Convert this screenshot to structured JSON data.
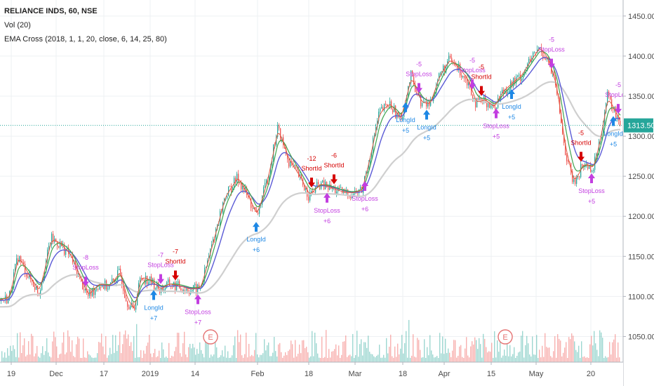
{
  "legend": {
    "symbol": "RELIANCE INDS, 60, NSE",
    "volume": "Vol (20)",
    "strategy": "EMA Cross (2018, 1, 1, 20, close, 6, 14, 25, 80)"
  },
  "price_badge": "1313.50",
  "colors": {
    "up": "#26a69a",
    "down": "#ef5350",
    "ema_fast": "#e0593f",
    "ema_mid": "#3fa34d",
    "ema_slow": "#5b5bd6",
    "ema_long": "#cfcfcf",
    "long_signal": "#1e88e5",
    "short_signal": "#d50000",
    "stop_signal": "#c23ee0",
    "price_line": "#26a69a",
    "earnings": "#e57373"
  },
  "earnings_marker": "E",
  "chart_data": {
    "type": "line",
    "ylim": [
      1018,
      1470
    ],
    "y_ticks": [
      1050,
      1100,
      1150,
      1200,
      1250,
      1300,
      1350,
      1400,
      1450
    ],
    "y_tick_labels": [
      "1050.00",
      "1100.00",
      "1150.00",
      "1200.00",
      "1250.00",
      "1300.00",
      "1350.00",
      "1400.00",
      "1450.00"
    ],
    "x_tick_labels": [
      "19",
      "Dec",
      "17",
      "2019",
      "14",
      "Feb",
      "18",
      "Mar",
      "18",
      "Apr",
      "15",
      "May",
      "20"
    ],
    "last_price": 1313.5,
    "price_path": [
      [
        0,
        1095
      ],
      [
        12,
        1098
      ],
      [
        25,
        1150
      ],
      [
        40,
        1125
      ],
      [
        55,
        1105
      ],
      [
        72,
        1172
      ],
      [
        85,
        1165
      ],
      [
        100,
        1150
      ],
      [
        115,
        1118
      ],
      [
        125,
        1100
      ],
      [
        140,
        1115
      ],
      [
        155,
        1112
      ],
      [
        170,
        1130
      ],
      [
        180,
        1095
      ],
      [
        190,
        1082
      ],
      [
        200,
        1125
      ],
      [
        215,
        1118
      ],
      [
        228,
        1108
      ],
      [
        240,
        1115
      ],
      [
        255,
        1112
      ],
      [
        270,
        1108
      ],
      [
        285,
        1110
      ],
      [
        300,
        1160
      ],
      [
        320,
        1225
      ],
      [
        338,
        1248
      ],
      [
        352,
        1225
      ],
      [
        365,
        1200
      ],
      [
        380,
        1245
      ],
      [
        395,
        1310
      ],
      [
        410,
        1270
      ],
      [
        425,
        1250
      ],
      [
        440,
        1225
      ],
      [
        455,
        1240
      ],
      [
        470,
        1235
      ],
      [
        485,
        1230
      ],
      [
        500,
        1228
      ],
      [
        515,
        1232
      ],
      [
        525,
        1270
      ],
      [
        540,
        1330
      ],
      [
        555,
        1340
      ],
      [
        570,
        1320
      ],
      [
        585,
        1375
      ],
      [
        600,
        1340
      ],
      [
        612,
        1340
      ],
      [
        625,
        1375
      ],
      [
        640,
        1395
      ],
      [
        652,
        1385
      ],
      [
        665,
        1370
      ],
      [
        678,
        1340
      ],
      [
        690,
        1345
      ],
      [
        703,
        1335
      ],
      [
        715,
        1355
      ],
      [
        728,
        1365
      ],
      [
        742,
        1375
      ],
      [
        756,
        1395
      ],
      [
        768,
        1410
      ],
      [
        780,
        1395
      ],
      [
        792,
        1360
      ],
      [
        805,
        1280
      ],
      [
        817,
        1240
      ],
      [
        830,
        1265
      ],
      [
        845,
        1260
      ],
      [
        855,
        1300
      ],
      [
        865,
        1350
      ],
      [
        875,
        1330
      ],
      [
        883,
        1318
      ]
    ],
    "ema_offsets": [
      -2,
      4,
      10
    ],
    "signals": [
      {
        "x": 122,
        "kind": "stop",
        "label": "StopLoss",
        "value": "-8"
      },
      {
        "x": 219,
        "kind": "long",
        "label": "LongId",
        "value": "+7"
      },
      {
        "x": 229,
        "kind": "stop",
        "label": "StopLoss",
        "value": "-7"
      },
      {
        "x": 250,
        "kind": "short",
        "label": "ShortId",
        "value": "-7"
      },
      {
        "x": 282,
        "kind": "stop",
        "label": "StopLoss",
        "value": "+7"
      },
      {
        "x": 365,
        "kind": "long",
        "label": "LongId",
        "value": "+6"
      },
      {
        "x": 444,
        "kind": "short",
        "label": "ShortId",
        "value": "-12"
      },
      {
        "x": 466,
        "kind": "stop",
        "label": "StopLoss",
        "value": "+6"
      },
      {
        "x": 476,
        "kind": "short",
        "label": "ShortId",
        "value": "-6"
      },
      {
        "x": 520,
        "kind": "stop",
        "label": "StopLoss",
        "value": "+6"
      },
      {
        "x": 578,
        "kind": "long",
        "label": "LongId",
        "value": "+5"
      },
      {
        "x": 597,
        "kind": "stop",
        "label": "StopLoss",
        "value": "-5"
      },
      {
        "x": 608,
        "kind": "long",
        "label": "LongId",
        "value": "+5"
      },
      {
        "x": 673,
        "kind": "stop",
        "label": "StopLoss",
        "value": "-5"
      },
      {
        "x": 686,
        "kind": "short",
        "label": "ShortId",
        "value": "-5"
      },
      {
        "x": 707,
        "kind": "stop",
        "label": "StopLoss",
        "value": "+5"
      },
      {
        "x": 729,
        "kind": "long",
        "label": "LongId",
        "value": "+5"
      },
      {
        "x": 786,
        "kind": "stop",
        "label": "StopLoss",
        "value": "-5"
      },
      {
        "x": 828,
        "kind": "short",
        "label": "ShortId",
        "value": "-5"
      },
      {
        "x": 843,
        "kind": "stop",
        "label": "StopLoss",
        "value": "+5"
      },
      {
        "x": 874,
        "kind": "long",
        "label": "LongId",
        "value": "+5"
      },
      {
        "x": 881,
        "kind": "stop",
        "label": "StopLoss",
        "value": "-5"
      }
    ],
    "earnings_positions": [
      300,
      720
    ]
  }
}
